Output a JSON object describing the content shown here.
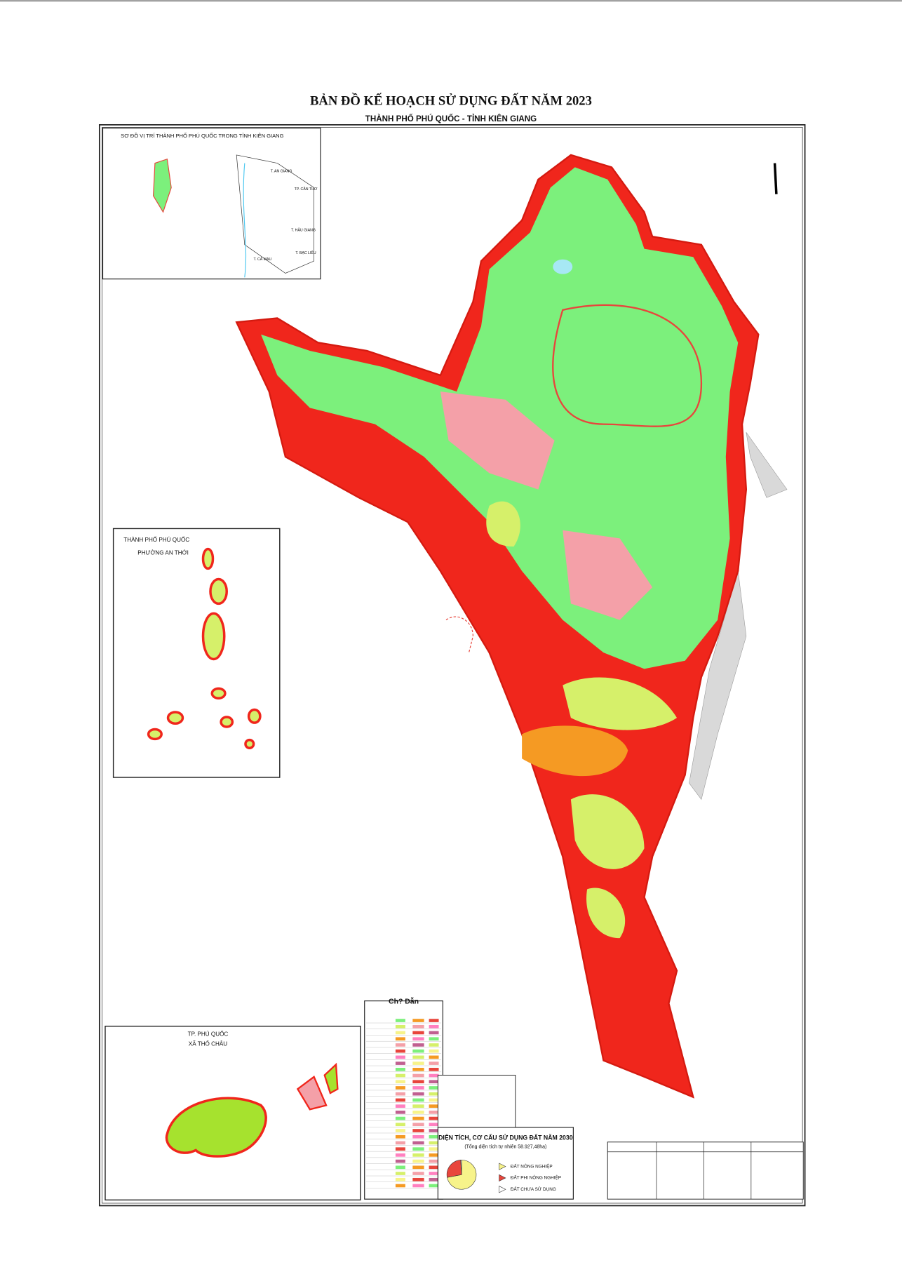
{
  "header": {
    "title": "BẢN ĐỒ KẾ HOẠCH SỬ DỤNG ĐẤT NĂM 2023",
    "subtitle": "THÀNH PHỐ PHÚ QUỐC - TỈNH KIÊN GIANG"
  },
  "location_inset": {
    "title": "SƠ ĐỒ VỊ TRÍ THÀNH PHỐ PHÚ QUỐC TRONG TỈNH KIÊN GIANG",
    "labels": [
      "T. AN GIANG",
      "TP. CẦN THƠ",
      "T. HẬU GIANG",
      "T. BẠC LIÊU",
      "T. CÀ MAU"
    ]
  },
  "an_thoi_inset": {
    "title": "THÀNH PHỐ PHÚ QUỐC",
    "subtitle": "PHƯỜNG AN THỚI"
  },
  "tho_chau_inset": {
    "title": "TP. PHÚ QUỐC",
    "subtitle": "XÃ THỔ CHÂU"
  },
  "legend": {
    "title": "Ch? Dẫn"
  },
  "chart_data": {
    "type": "pie",
    "title": "DIỆN TÍCH, CƠ CẤU SỬ DỤNG ĐẤT NĂM 2030",
    "subtitle": "(Tổng diện tích tự nhiên 58.927,48ha)",
    "categories": [
      "ĐẤT NÔNG NGHIỆP",
      "ĐẤT PHI NÔNG NGHIỆP",
      "ĐẤT CHƯA SỬ DỤNG"
    ],
    "values": [
      72,
      27,
      1
    ],
    "colors": [
      "#f7f38a",
      "#e8453c",
      "#ffffff"
    ]
  }
}
